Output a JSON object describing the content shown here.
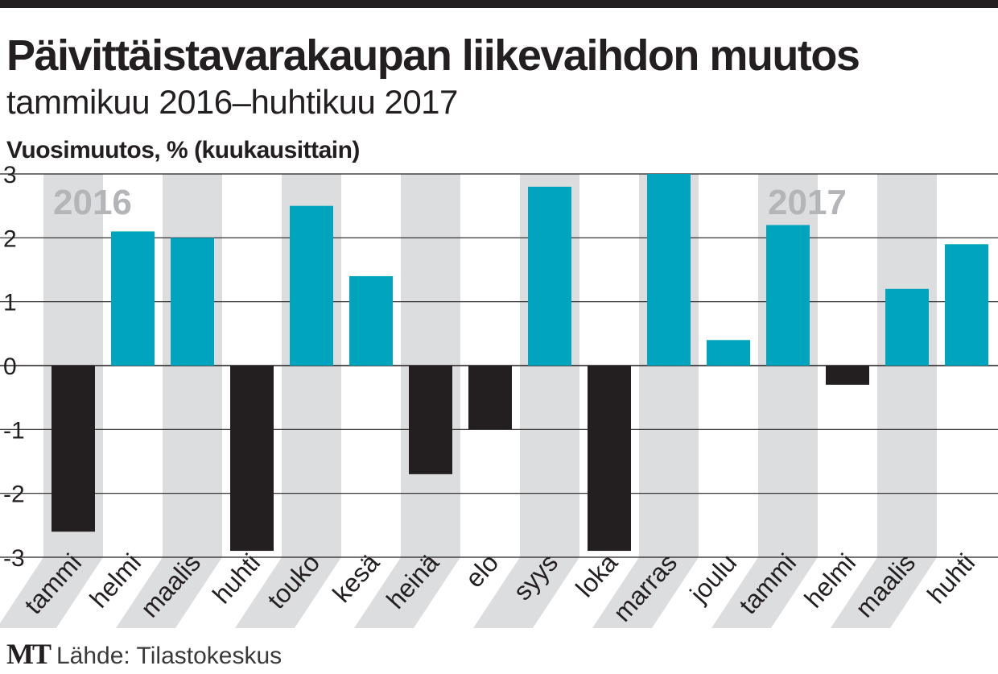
{
  "title": "Päivittäistavarakaupan liikevaihdon muutos",
  "subtitle": "tammikuu 2016–huhtikuu 2017",
  "source": {
    "logo": "MT",
    "text": "Lähde: Tilastokeskus"
  },
  "colors": {
    "positive": "#00a5bd",
    "negative": "#231f20",
    "stripe": "#dcdddf",
    "year_label": "#b3b5b8",
    "grid": "#231f20"
  },
  "chart_data": {
    "type": "bar",
    "title": "Päivittäistavarakaupan liikevaihdon muutos",
    "ylabel": "Vuosimuutos, % (kuukausittain)",
    "xlabel": "",
    "ylim": [
      -3,
      3
    ],
    "yticks": [
      3,
      2,
      1,
      0,
      -1,
      -2,
      -3
    ],
    "ytick_labels": [
      "3",
      "2",
      "1",
      "0",
      "-1",
      "-2",
      "-3"
    ],
    "categories": [
      "tammi",
      "helmi",
      "maalis",
      "huhti",
      "touko",
      "kesä",
      "heinä",
      "elo",
      "syys",
      "loka",
      "marras",
      "joulu",
      "tammi",
      "helmi",
      "maalis",
      "huhti"
    ],
    "values": [
      -2.6,
      2.1,
      2.0,
      -2.9,
      2.5,
      1.4,
      -1.7,
      -1.0,
      2.8,
      -2.9,
      3.0,
      0.4,
      2.2,
      -0.3,
      1.2,
      1.9
    ],
    "year_labels": [
      {
        "label": "2016",
        "category_index": 0
      },
      {
        "label": "2017",
        "category_index": 12
      }
    ],
    "grid": true,
    "legend": "none"
  }
}
